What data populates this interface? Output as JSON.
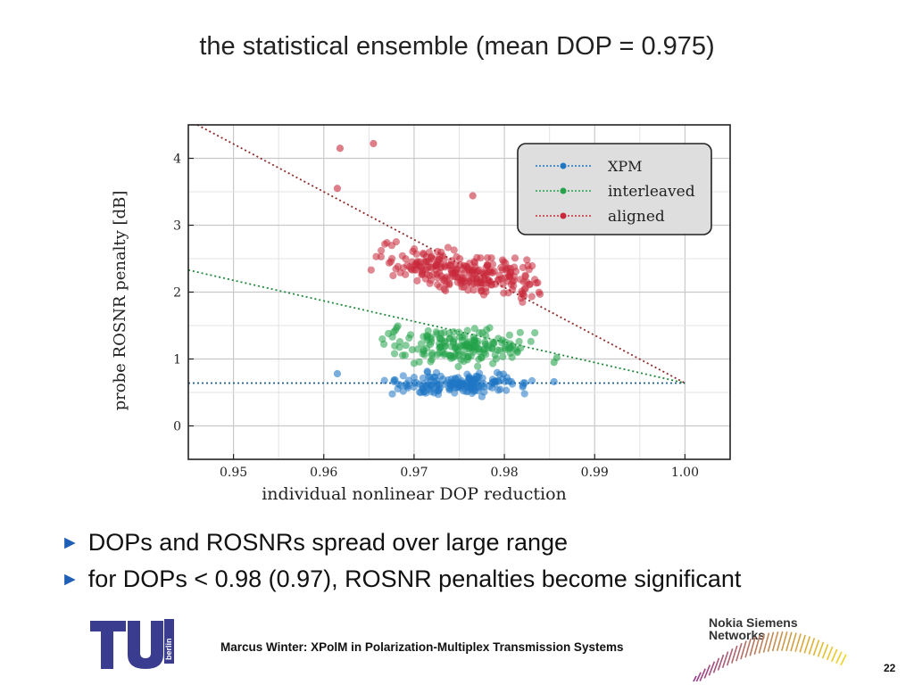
{
  "slide": {
    "title": "the statistical ensemble (mean DOP = 0.975)",
    "bullets": [
      "DOPs and ROSNRs spread over large range",
      "for DOPs < 0.98 (0.97), ROSNR penalties become significant"
    ],
    "footer": "Marcus Winter: XPolM in Polarization-Multiplex Transmission Systems",
    "page_number": "22",
    "logos": {
      "left": {
        "icon": "tu-berlin-logo",
        "text": "berlin"
      },
      "right": {
        "icon": "nokia-siemens-networks-logo",
        "line1": "Nokia Siemens",
        "line2": "Networks"
      }
    }
  },
  "colors": {
    "xpm": "#1f77c4",
    "interleaved": "#25a24a",
    "aligned": "#c8283a",
    "accent_arrow": "#1f5fb5",
    "grid": "#c9c9c9"
  },
  "chart_data": {
    "type": "scatter",
    "xlabel": "individual nonlinear DOP reduction",
    "ylabel": "probe ROSNR penalty [dB]",
    "xlim": [
      0.945,
      1.005
    ],
    "ylim": [
      -0.5,
      4.5
    ],
    "xticks": [
      0.95,
      0.96,
      0.97,
      0.98,
      0.99,
      1.0
    ],
    "xtick_labels": [
      "0.95",
      "0.96",
      "0.97",
      "0.98",
      "0.99",
      "1.00"
    ],
    "yticks": [
      0,
      1,
      2,
      3,
      4
    ],
    "ytick_labels": [
      "0",
      "1",
      "2",
      "3",
      "4"
    ],
    "grid": true,
    "legend_position": "top-right",
    "series": [
      {
        "name": "XPM",
        "key": "xpm",
        "cloud": {
          "x_range": [
            0.965,
            0.984
          ],
          "x_center": 0.976,
          "y_center": 0.62,
          "y_spread": 0.13,
          "count": 170
        },
        "outliers": [
          {
            "x": 0.9615,
            "y": 0.78
          },
          {
            "x": 0.9855,
            "y": 0.66
          }
        ],
        "fit": [
          {
            "x": 0.945,
            "y": 0.64
          },
          {
            "x": 1.0,
            "y": 0.64
          }
        ]
      },
      {
        "name": "interleaved",
        "key": "interleaved",
        "cloud": {
          "x_range": [
            0.965,
            0.984
          ],
          "x_center": 0.975,
          "y_center": 1.2,
          "y_spread": 0.2,
          "slope": -0.025,
          "count": 180
        },
        "outliers": [
          {
            "x": 0.9855,
            "y": 0.95
          },
          {
            "x": 0.9858,
            "y": 1.02
          }
        ],
        "fit": [
          {
            "x": 0.945,
            "y": 2.33
          },
          {
            "x": 1.0,
            "y": 0.64
          }
        ]
      },
      {
        "name": "aligned",
        "key": "aligned",
        "cloud": {
          "x_range": [
            0.965,
            0.985
          ],
          "x_center": 0.975,
          "y_center": 2.3,
          "y_spread": 0.25,
          "slope": -0.18,
          "count": 260
        },
        "outliers": [
          {
            "x": 0.9618,
            "y": 4.15
          },
          {
            "x": 0.9655,
            "y": 4.22
          },
          {
            "x": 0.9615,
            "y": 3.55
          },
          {
            "x": 0.9765,
            "y": 3.44
          }
        ],
        "fit": [
          {
            "x": 0.946,
            "y": 4.5
          },
          {
            "x": 1.0,
            "y": 0.64
          }
        ]
      }
    ]
  }
}
